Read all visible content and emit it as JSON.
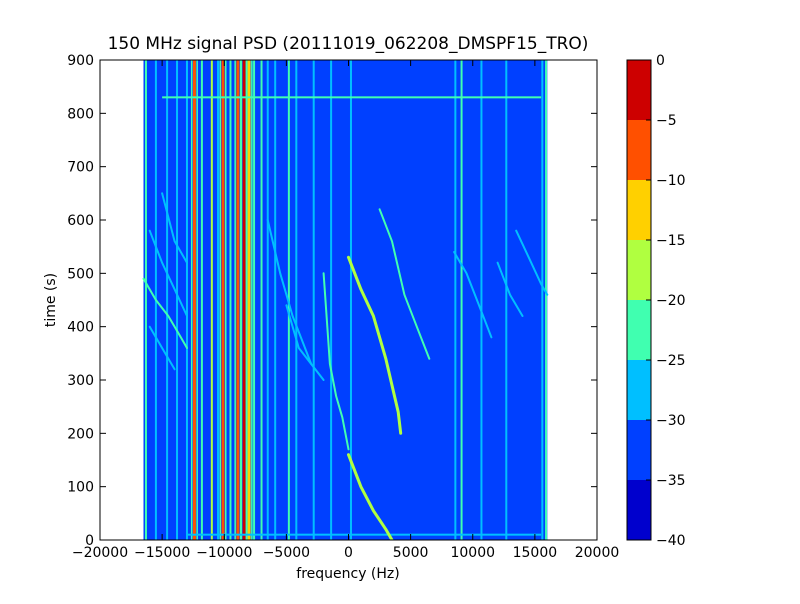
{
  "chart_data": {
    "type": "heatmap",
    "title": "150 MHz signal PSD (20111019_062208_DMSPF15_TRO)",
    "xlabel": "frequency (Hz)",
    "ylabel": "time (s)",
    "xlim": [
      -20000,
      20000
    ],
    "ylim": [
      0,
      900
    ],
    "xticks": [
      -20000,
      -15000,
      -10000,
      -5000,
      0,
      5000,
      10000,
      15000,
      20000
    ],
    "xtick_labels": [
      "−20000",
      "−15000",
      "−10000",
      "−5000",
      "0",
      "5000",
      "10000",
      "15000",
      "20000"
    ],
    "yticks": [
      0,
      100,
      200,
      300,
      400,
      500,
      600,
      700,
      800,
      900
    ],
    "ytick_labels": [
      "0",
      "100",
      "200",
      "300",
      "400",
      "500",
      "600",
      "700",
      "800",
      "900"
    ],
    "data_extent": {
      "x": [
        -16500,
        16000
      ],
      "y": [
        0,
        900
      ]
    },
    "background_level": -35,
    "colorbar": {
      "levels": [
        -40,
        -35,
        -30,
        -25,
        -20,
        -15,
        -10,
        -5,
        0
      ],
      "tick_labels": [
        "−40",
        "−35",
        "−30",
        "−25",
        "−20",
        "−15",
        "−10",
        "−5",
        "0"
      ],
      "colors": [
        "#0000cd",
        "#0040ff",
        "#00bfff",
        "#40ffb0",
        "#b0ff40",
        "#ffd000",
        "#ff5000",
        "#cd0000"
      ]
    },
    "steady_tones": [
      {
        "f": -16300,
        "level": -25
      },
      {
        "f": -15500,
        "level": -30
      },
      {
        "f": -14600,
        "level": -30
      },
      {
        "f": -13800,
        "level": -30
      },
      {
        "f": -13000,
        "level": -30
      },
      {
        "f": -12400,
        "level": -10
      },
      {
        "f": -11800,
        "level": -25
      },
      {
        "f": -11000,
        "level": -20
      },
      {
        "f": -10500,
        "level": -30
      },
      {
        "f": -10100,
        "level": -10
      },
      {
        "f": -9500,
        "level": -25
      },
      {
        "f": -8900,
        "level": -10
      },
      {
        "f": -8400,
        "level": -5
      },
      {
        "f": -8000,
        "level": -15
      },
      {
        "f": -7600,
        "level": -25
      },
      {
        "f": -7000,
        "level": -25
      },
      {
        "f": -6500,
        "level": -30
      },
      {
        "f": -5900,
        "level": -30
      },
      {
        "f": -4800,
        "level": -25
      },
      {
        "f": -4200,
        "level": -30
      },
      {
        "f": -2800,
        "level": -30
      },
      {
        "f": -1400,
        "level": -30
      },
      {
        "f": 200,
        "level": -30
      },
      {
        "f": 8600,
        "level": -30
      },
      {
        "f": 9100,
        "level": -25
      },
      {
        "f": 10700,
        "level": -30
      },
      {
        "f": 12700,
        "level": -30
      },
      {
        "f": 15600,
        "level": -30
      },
      {
        "f": 15900,
        "level": -25
      }
    ],
    "horizontal_lines": [
      {
        "t": 830,
        "f_range": [
          -15000,
          15500
        ],
        "level": -25
      },
      {
        "t": 10,
        "f_range": [
          -13000,
          15500
        ],
        "level": -30
      }
    ],
    "drifting_traces": [
      {
        "level": -20,
        "points": [
          [
            0,
            160
          ],
          [
            1000,
            100
          ],
          [
            2000,
            55
          ],
          [
            3000,
            20
          ],
          [
            3500,
            0
          ]
        ]
      },
      {
        "level": -20,
        "points": [
          [
            0,
            530
          ],
          [
            1000,
            470
          ],
          [
            2000,
            420
          ],
          [
            3000,
            340
          ],
          [
            4000,
            240
          ],
          [
            4200,
            200
          ]
        ]
      },
      {
        "level": -25,
        "points": [
          [
            -2000,
            500
          ],
          [
            -1500,
            330
          ],
          [
            -1000,
            270
          ],
          [
            -500,
            230
          ],
          [
            0,
            170
          ]
        ]
      },
      {
        "level": -25,
        "points": [
          [
            2500,
            620
          ],
          [
            3500,
            560
          ],
          [
            4500,
            460
          ],
          [
            5500,
            400
          ],
          [
            6500,
            340
          ]
        ]
      },
      {
        "level": -30,
        "points": [
          [
            -6500,
            600
          ],
          [
            -5500,
            500
          ],
          [
            -4500,
            420
          ],
          [
            -4000,
            390
          ],
          [
            -3000,
            330
          ]
        ]
      },
      {
        "level": -30,
        "points": [
          [
            -5000,
            440
          ],
          [
            -4000,
            360
          ],
          [
            -3000,
            330
          ],
          [
            -2000,
            300
          ]
        ]
      },
      {
        "level": -25,
        "points": [
          [
            -16500,
            490
          ],
          [
            -15500,
            450
          ],
          [
            -14500,
            420
          ],
          [
            -13500,
            380
          ],
          [
            -13000,
            360
          ]
        ]
      },
      {
        "level": -30,
        "points": [
          [
            -16000,
            580
          ],
          [
            -15000,
            520
          ],
          [
            -14000,
            470
          ],
          [
            -13000,
            420
          ]
        ]
      },
      {
        "level": -30,
        "points": [
          [
            -16000,
            400
          ],
          [
            -15000,
            360
          ],
          [
            -14000,
            320
          ]
        ]
      },
      {
        "level": -30,
        "points": [
          [
            -15000,
            650
          ],
          [
            -14000,
            560
          ],
          [
            -13000,
            520
          ]
        ]
      },
      {
        "level": -30,
        "points": [
          [
            8500,
            540
          ],
          [
            9500,
            500
          ],
          [
            10500,
            440
          ],
          [
            11500,
            380
          ]
        ]
      },
      {
        "level": -30,
        "points": [
          [
            13500,
            580
          ],
          [
            14500,
            530
          ],
          [
            15500,
            480
          ],
          [
            16000,
            460
          ]
        ]
      },
      {
        "level": -30,
        "points": [
          [
            12000,
            520
          ],
          [
            13000,
            460
          ],
          [
            14000,
            420
          ]
        ]
      }
    ]
  }
}
